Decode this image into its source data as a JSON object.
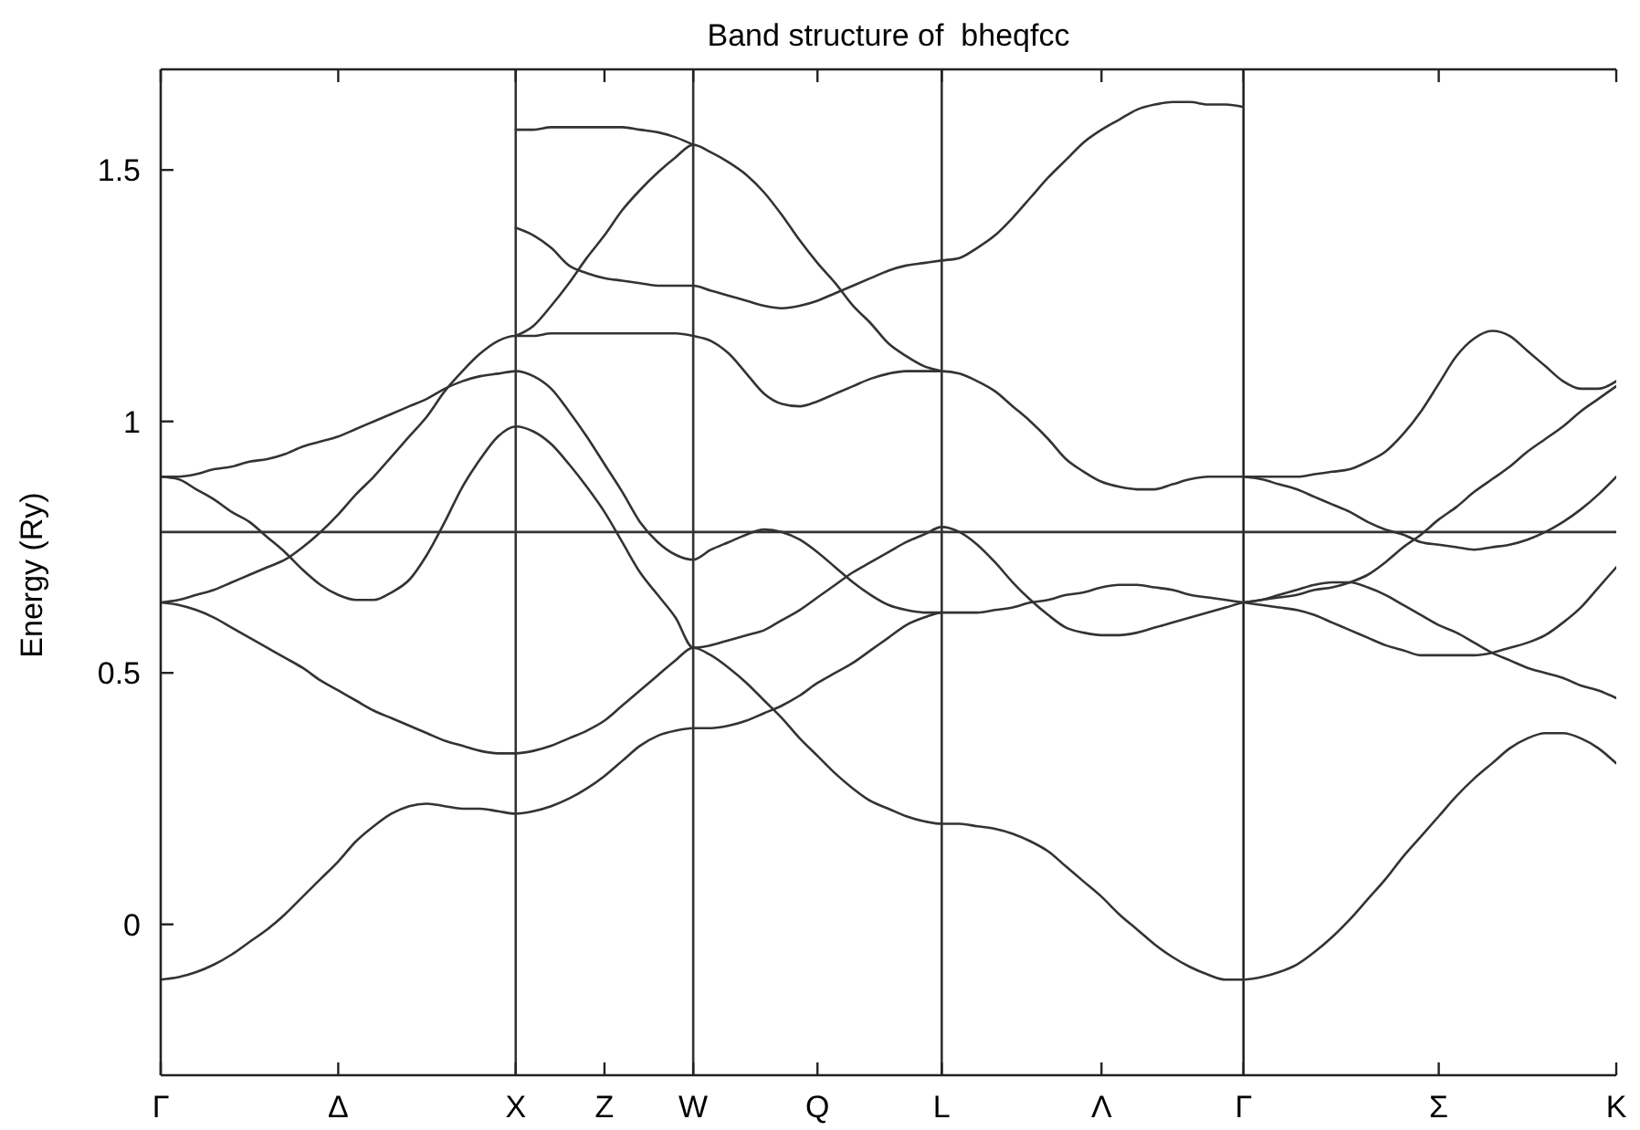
{
  "chart_data": {
    "type": "line",
    "title": "Band structure of  bheqfcc",
    "ylabel": "Energy (Ry)",
    "categories": [
      "Γ",
      null,
      null,
      null,
      null,
      null,
      null,
      null,
      null,
      null,
      "Δ",
      null,
      null,
      null,
      null,
      null,
      null,
      null,
      null,
      null,
      "X",
      null,
      null,
      null,
      null,
      "Z",
      null,
      null,
      null,
      null,
      "W",
      null,
      null,
      null,
      null,
      null,
      null,
      "Q",
      null,
      null,
      null,
      null,
      null,
      null,
      "L",
      null,
      null,
      null,
      null,
      null,
      null,
      null,
      null,
      "Λ",
      null,
      null,
      null,
      null,
      null,
      null,
      null,
      "Γ",
      null,
      null,
      null,
      null,
      null,
      null,
      null,
      null,
      null,
      null,
      "Σ",
      null,
      null,
      null,
      null,
      null,
      null,
      null,
      null,
      null,
      "K"
    ],
    "ylim": [
      -0.3,
      1.7
    ],
    "yticks": [
      0,
      0.5,
      1,
      1.5
    ],
    "ref_lines": [
      {
        "axis": "x",
        "value": "X",
        "color": "#333333"
      },
      {
        "axis": "x",
        "value": "W",
        "color": "#333333"
      },
      {
        "axis": "x",
        "value": "L",
        "color": "#333333"
      },
      {
        "axis": "y",
        "value": 0.78,
        "color": "#333333"
      }
    ],
    "series": [
      {
        "color": "#333333",
        "values": [
          -0.11,
          -0.105,
          -0.095,
          -0.08,
          -0.06,
          -0.035,
          -0.01,
          0.02,
          0.055,
          0.09,
          0.125,
          0.165,
          0.195,
          0.22,
          0.235,
          0.24,
          0.235,
          0.23,
          0.23,
          0.225,
          0.22,
          0.225,
          0.235,
          0.25,
          0.27,
          0.295,
          0.325,
          0.355,
          0.375,
          0.385,
          0.39,
          0.39,
          0.395,
          0.405,
          0.42,
          0.435,
          0.455,
          0.48,
          0.5,
          0.52,
          0.545,
          0.57,
          0.595,
          0.61,
          0.62,
          0.62,
          0.62,
          0.625,
          0.63,
          0.64,
          0.645,
          0.655,
          0.66,
          0.67,
          0.675,
          0.675,
          0.67,
          0.665,
          0.655,
          0.65,
          0.645,
          0.64,
          0.635,
          0.63,
          0.625,
          0.615,
          0.6,
          0.585,
          0.57,
          0.555,
          0.545,
          0.535,
          0.535,
          0.535,
          0.535,
          0.54,
          0.55,
          0.56,
          0.575,
          0.6,
          0.63,
          0.67,
          0.71
        ]
      },
      {
        "color": "#333333",
        "values": [
          0.64,
          0.635,
          0.625,
          0.61,
          0.59,
          0.57,
          0.55,
          0.53,
          0.51,
          0.485,
          0.465,
          0.445,
          0.425,
          0.41,
          0.395,
          0.38,
          0.365,
          0.355,
          0.345,
          0.34,
          0.34,
          0.345,
          0.355,
          0.37,
          0.385,
          0.405,
          0.435,
          0.465,
          0.495,
          0.525,
          0.55,
          0.535,
          0.51,
          0.48,
          0.445,
          0.41,
          0.37,
          0.335,
          0.3,
          0.27,
          0.245,
          0.23,
          0.215,
          0.205,
          0.2,
          0.2,
          0.195,
          0.19,
          0.18,
          0.165,
          0.145,
          0.115,
          0.085,
          0.055,
          0.02,
          -0.01,
          -0.04,
          -0.065,
          -0.085,
          -0.1,
          -0.11,
          -0.11,
          -0.105,
          -0.095,
          -0.08,
          -0.055,
          -0.025,
          0.01,
          0.05,
          0.09,
          0.135,
          0.175,
          0.215,
          0.255,
          0.29,
          0.32,
          0.35,
          0.37,
          0.38,
          0.38,
          0.37,
          0.35,
          0.32
        ]
      },
      {
        "color": "#333333",
        "values": [
          0.89,
          0.885,
          0.865,
          0.845,
          0.82,
          0.8,
          0.77,
          0.74,
          0.705,
          0.675,
          0.655,
          0.645,
          0.645,
          0.66,
          0.685,
          0.735,
          0.8,
          0.87,
          0.925,
          0.97,
          0.99,
          0.98,
          0.955,
          0.915,
          0.87,
          0.82,
          0.76,
          0.7,
          0.655,
          0.61,
          0.55,
          0.555,
          0.565,
          0.575,
          0.585,
          0.605,
          0.625,
          0.65,
          0.675,
          0.7,
          0.72,
          0.74,
          0.76,
          0.775,
          0.79,
          0.78,
          0.755,
          0.72,
          0.68,
          0.645,
          0.615,
          0.59,
          0.58,
          0.575,
          0.575,
          0.58,
          0.59,
          0.6,
          0.61,
          0.62,
          0.63,
          0.64,
          0.645,
          0.655,
          0.665,
          0.675,
          0.68,
          0.68,
          0.67,
          0.655,
          0.635,
          0.615,
          0.595,
          0.58,
          0.56,
          0.54,
          0.525,
          0.51,
          0.5,
          0.49,
          0.475,
          0.465,
          0.45
        ]
      },
      {
        "color": "#333333",
        "values": [
          0.89,
          0.89,
          0.895,
          0.905,
          0.91,
          0.92,
          0.925,
          0.935,
          0.95,
          0.96,
          0.97,
          0.985,
          1,
          1.015,
          1.03,
          1.045,
          1.065,
          1.08,
          1.09,
          1.095,
          1.1,
          1.09,
          1.065,
          1.02,
          0.97,
          0.915,
          0.86,
          0.8,
          0.76,
          0.735,
          0.725,
          0.745,
          0.76,
          0.775,
          0.785,
          0.78,
          0.765,
          0.74,
          0.71,
          0.68,
          0.655,
          0.635,
          0.625,
          0.62,
          0.62,
          null,
          null,
          null,
          null,
          null,
          null,
          null,
          null,
          null,
          null,
          null,
          null,
          null,
          null,
          null,
          null,
          null,
          null,
          null,
          null,
          null,
          null,
          null,
          null,
          null,
          null,
          null,
          null,
          null,
          null,
          null,
          null,
          null,
          null,
          null,
          null,
          null,
          null
        ]
      },
      {
        "color": "#333333",
        "values": [
          0.64,
          0.645,
          0.655,
          0.665,
          0.68,
          0.695,
          0.71,
          0.725,
          0.75,
          0.78,
          0.815,
          0.855,
          0.89,
          0.93,
          0.97,
          1.01,
          1.06,
          1.1,
          1.135,
          1.16,
          1.17,
          1.17,
          1.175,
          1.175,
          1.175,
          1.175,
          1.175,
          1.175,
          1.175,
          1.175,
          1.17,
          1.16,
          1.135,
          1.095,
          1.055,
          1.035,
          1.03,
          1.04,
          1.055,
          1.07,
          1.085,
          1.095,
          1.1,
          1.1,
          1.1,
          1.095,
          1.08,
          1.06,
          1.03,
          1,
          0.965,
          0.925,
          0.9,
          0.88,
          0.87,
          0.865,
          0.865,
          0.875,
          0.885,
          0.89,
          0.89,
          0.89,
          0.89,
          0.89,
          0.89,
          0.895,
          0.9,
          0.905,
          0.92,
          0.94,
          0.975,
          1.02,
          1.075,
          1.13,
          1.165,
          1.18,
          1.17,
          1.14,
          1.11,
          1.08,
          1.065,
          1.065,
          1.08
        ]
      },
      {
        "color": "#333333",
        "values": [
          null,
          null,
          null,
          null,
          null,
          null,
          null,
          null,
          null,
          null,
          null,
          null,
          null,
          null,
          null,
          null,
          null,
          null,
          null,
          null,
          1.17,
          1.19,
          1.23,
          1.275,
          1.325,
          1.37,
          1.42,
          1.46,
          1.495,
          1.525,
          1.55,
          1.535,
          1.515,
          1.49,
          1.455,
          1.41,
          1.36,
          1.315,
          1.275,
          1.23,
          1.195,
          1.155,
          1.13,
          1.11,
          1.1,
          null,
          null,
          null,
          null,
          null,
          null,
          null,
          null,
          null,
          null,
          null,
          null,
          null,
          null,
          null,
          null,
          null,
          null,
          null,
          null,
          null,
          null,
          null,
          null,
          null,
          null,
          null,
          null,
          null,
          null,
          null,
          null,
          null,
          null,
          null,
          null,
          null,
          null
        ]
      },
      {
        "color": "#333333",
        "values": [
          null,
          null,
          null,
          null,
          null,
          null,
          null,
          null,
          null,
          null,
          null,
          null,
          null,
          null,
          null,
          null,
          null,
          null,
          null,
          null,
          1.58,
          1.58,
          1.585,
          1.585,
          1.585,
          1.585,
          1.585,
          1.58,
          1.575,
          1.565,
          1.55,
          null,
          null,
          null,
          null,
          null,
          null,
          null,
          null,
          null,
          null,
          null,
          null,
          null,
          null,
          null,
          null,
          null,
          null,
          null,
          null,
          null,
          null,
          null,
          null,
          null,
          null,
          null,
          null,
          null,
          null,
          null,
          null,
          null,
          null,
          null,
          null,
          null,
          null,
          null,
          null,
          null,
          null,
          null,
          null,
          null,
          null,
          null,
          null,
          null,
          null,
          null,
          null
        ]
      },
      {
        "color": "#333333",
        "values": [
          null,
          null,
          null,
          null,
          null,
          null,
          null,
          null,
          null,
          null,
          null,
          null,
          null,
          null,
          null,
          null,
          null,
          null,
          null,
          null,
          1.385,
          1.37,
          1.345,
          1.31,
          1.295,
          1.285,
          1.28,
          1.275,
          1.27,
          1.27,
          1.27,
          1.26,
          1.25,
          1.24,
          1.23,
          1.225,
          1.23,
          1.24,
          1.255,
          1.27,
          1.285,
          1.3,
          1.31,
          1.315,
          1.32,
          1.325,
          1.345,
          1.37,
          1.405,
          1.445,
          1.485,
          1.52,
          1.555,
          1.58,
          1.6,
          1.62,
          1.63,
          1.635,
          1.635,
          1.63,
          1.63,
          1.625,
          null,
          null,
          null,
          null,
          null,
          null,
          null,
          null,
          null,
          null,
          null,
          null,
          null,
          null,
          null,
          null,
          null,
          null,
          null,
          null,
          null
        ]
      },
      {
        "color": "#333333",
        "values": [
          null,
          null,
          null,
          null,
          null,
          null,
          null,
          null,
          null,
          null,
          null,
          null,
          null,
          null,
          null,
          null,
          null,
          null,
          null,
          null,
          null,
          null,
          null,
          null,
          null,
          null,
          null,
          null,
          null,
          null,
          null,
          null,
          null,
          null,
          null,
          null,
          null,
          null,
          null,
          null,
          null,
          null,
          null,
          null,
          null,
          null,
          null,
          null,
          null,
          null,
          null,
          null,
          null,
          null,
          null,
          null,
          null,
          null,
          null,
          null,
          null,
          0.89,
          0.885,
          0.875,
          0.865,
          0.85,
          0.835,
          0.82,
          0.8,
          0.785,
          0.775,
          0.76,
          0.755,
          0.75,
          0.745,
          0.75,
          0.755,
          0.765,
          0.78,
          0.8,
          0.825,
          0.855,
          0.89
        ]
      },
      {
        "color": "#333333",
        "values": [
          null,
          null,
          null,
          null,
          null,
          null,
          null,
          null,
          null,
          null,
          null,
          null,
          null,
          null,
          null,
          null,
          null,
          null,
          null,
          null,
          null,
          null,
          null,
          null,
          null,
          null,
          null,
          null,
          null,
          null,
          null,
          null,
          null,
          null,
          null,
          null,
          null,
          null,
          null,
          null,
          null,
          null,
          null,
          null,
          null,
          null,
          null,
          null,
          null,
          null,
          null,
          null,
          null,
          null,
          null,
          null,
          null,
          null,
          null,
          null,
          null,
          0.64,
          0.645,
          0.65,
          0.655,
          0.665,
          0.67,
          0.68,
          0.695,
          0.72,
          0.75,
          0.775,
          0.805,
          0.83,
          0.86,
          0.885,
          0.91,
          0.94,
          0.965,
          0.99,
          1.02,
          1.045,
          1.07
        ]
      }
    ]
  }
}
